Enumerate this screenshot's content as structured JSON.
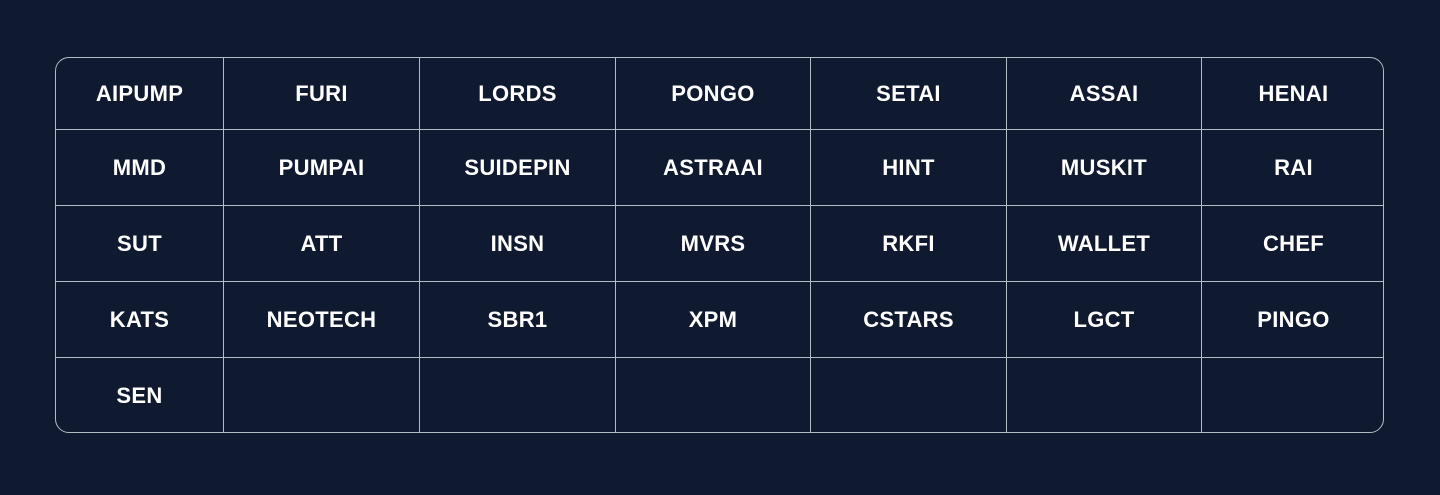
{
  "tokens": [
    [
      "AIPUMP",
      "FURI",
      "LORDS",
      "PONGO",
      "SETAI",
      "ASSAI",
      "HENAI"
    ],
    [
      "MMD",
      "PUMPAI",
      "SUIDEPIN",
      "ASTRAAI",
      "HINT",
      "MUSKIT",
      "RAI"
    ],
    [
      "SUT",
      "ATT",
      "INSN",
      "MVRS",
      "RKFI",
      "WALLET",
      "CHEF"
    ],
    [
      "KATS",
      "NEOTECH",
      "SBR1",
      "XPM",
      "CSTARS",
      "LGCT",
      "PINGO"
    ],
    [
      "SEN",
      "",
      "",
      "",
      "",
      "",
      ""
    ]
  ],
  "colors": {
    "background": "#0f1a30",
    "border": "#b4bac6",
    "text": "#ffffff"
  }
}
